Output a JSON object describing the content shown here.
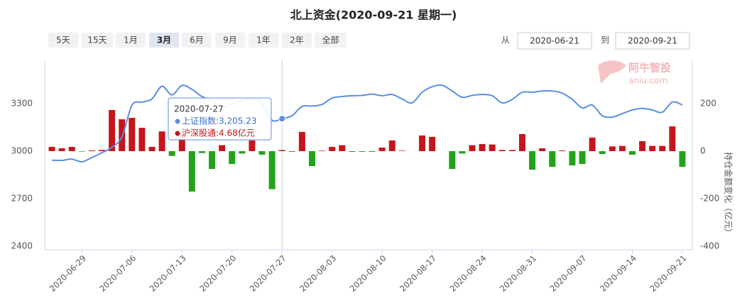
{
  "chart_data": {
    "type": "combo",
    "title": "北上资金(2020-09-21 星期一)",
    "range_buttons": [
      "5天",
      "15天",
      "1月",
      "3月",
      "6月",
      "9月",
      "1年",
      "2年",
      "全部"
    ],
    "selected_button": 3,
    "date_from_label": "从",
    "date_from": "2020-06-21",
    "date_to_label": "到",
    "date_to": "2020-09-21",
    "watermark": {
      "brand": "阿牛智投",
      "site": "aniu.com"
    },
    "y2_label": "持仓金额变化（亿元）",
    "categories": [
      null,
      null,
      null,
      "2020-06-29",
      null,
      null,
      null,
      null,
      "2020-07-06",
      null,
      null,
      null,
      null,
      "2020-07-13",
      null,
      null,
      null,
      null,
      "2020-07-20",
      null,
      null,
      null,
      null,
      "2020-07-27",
      null,
      null,
      null,
      null,
      "2020-08-03",
      null,
      null,
      null,
      null,
      "2020-08-10",
      null,
      null,
      null,
      null,
      "2020-08-17",
      null,
      null,
      null,
      null,
      "2020-08-24",
      null,
      null,
      null,
      null,
      "2020-08-31",
      null,
      null,
      null,
      null,
      "2020-09-07",
      null,
      null,
      null,
      null,
      "2020-09-14",
      null,
      null,
      null,
      null,
      "2020-09-21"
    ],
    "series": [
      {
        "type": "line",
        "axis": "y",
        "color": "#5b8ee2",
        "values": [
          2943,
          2942,
          2950,
          2933,
          2960,
          2990,
          3025,
          3090,
          3290,
          3310,
          3330,
          3410,
          3355,
          3415,
          3390,
          3345,
          3320,
          3280,
          3300,
          3320,
          3330,
          3300,
          3196,
          3205.23,
          3224,
          3282,
          3285,
          3295,
          3335,
          3345,
          3350,
          3352,
          3360,
          3350,
          3358,
          3330,
          3305,
          3372,
          3407,
          3416,
          3380,
          3340,
          3352,
          3358,
          3350,
          3305,
          3327,
          3372,
          3372,
          3380,
          3380,
          3366,
          3327,
          3273,
          3291,
          3224,
          3215,
          3237,
          3260,
          3270,
          3260,
          3246,
          3310,
          3292
        ]
      },
      {
        "type": "bar",
        "axis": "y2",
        "colors": {
          "positive": "#c4161c",
          "negative": "#22a31b"
        },
        "values": [
          18,
          12,
          18,
          -2,
          3,
          5,
          173,
          134,
          140,
          98,
          18,
          83,
          -20,
          70,
          -170,
          -8,
          -75,
          25,
          -54,
          -10,
          45,
          -15,
          -160,
          4.68,
          -3,
          81,
          -63,
          2,
          18,
          25,
          -3,
          -3,
          -3,
          15,
          45,
          2,
          0,
          66,
          60,
          0,
          -75,
          -10,
          25,
          30,
          28,
          5,
          5,
          72,
          -78,
          12,
          -66,
          3,
          -60,
          -54,
          57,
          -12,
          20,
          22,
          -15,
          42,
          22,
          22,
          104,
          -66
        ]
      }
    ],
    "ylim": [
      2400,
      3560
    ],
    "yticks": [
      2400,
      2700,
      3000,
      3300
    ],
    "y2lim": [
      -400,
      373
    ],
    "y2ticks": [
      -400,
      -200,
      0,
      200
    ],
    "grid": false,
    "tooltip": {
      "index": 23,
      "lines": [
        "上证指数:3,205.23",
        "沪深股通:4.68亿元"
      ]
    }
  }
}
